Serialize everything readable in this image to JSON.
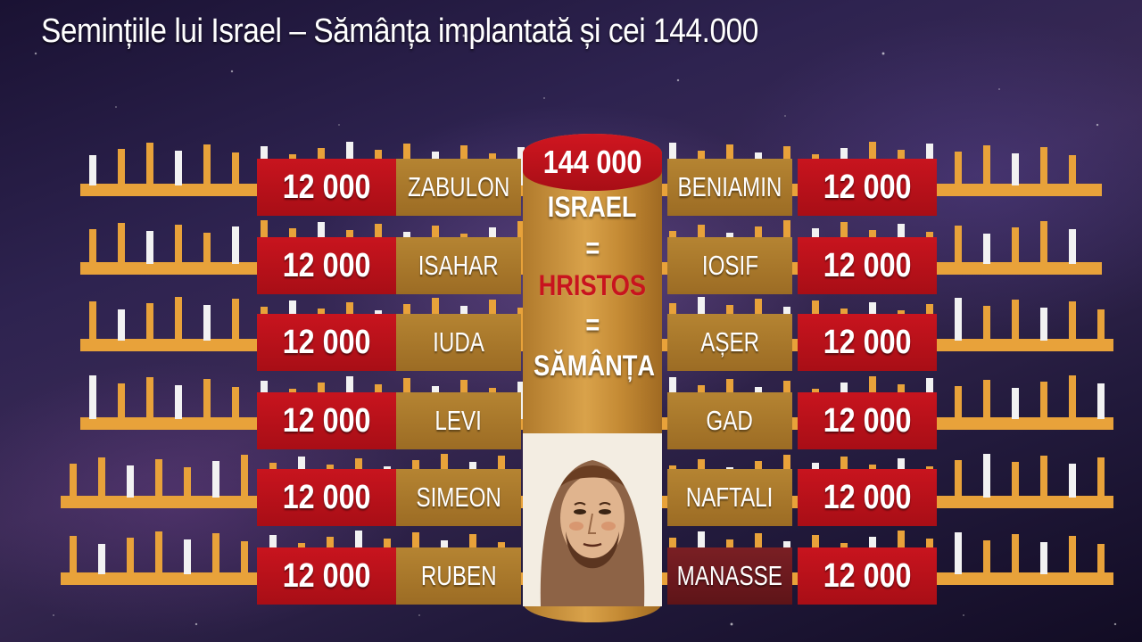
{
  "title": "Semințiile lui Israel – Sămânța implantată și cei 144.000",
  "center": {
    "total": "144 000",
    "line1": "ISRAEL",
    "eq1": "=",
    "line2": "HRISTOS",
    "eq2": "=",
    "line3": "SĂMÂNȚA",
    "portrait_icon": "christ-portrait-icon"
  },
  "left_tribes": [
    {
      "name": "ZABULON",
      "count": "12 000"
    },
    {
      "name": "ISAHAR",
      "count": "12 000"
    },
    {
      "name": "IUDA",
      "count": "12 000"
    },
    {
      "name": "LEVI",
      "count": "12 000"
    },
    {
      "name": "SIMEON",
      "count": "12 000"
    },
    {
      "name": "RUBEN",
      "count": "12 000"
    }
  ],
  "right_tribes": [
    {
      "name": "BENIAMIN",
      "count": "12 000"
    },
    {
      "name": "IOSIF",
      "count": "12 000"
    },
    {
      "name": "AȘER",
      "count": "12 000"
    },
    {
      "name": "GAD",
      "count": "12 000"
    },
    {
      "name": "NAFTALI",
      "count": "12 000"
    },
    {
      "name": "MANASSE",
      "count": "12 000"
    }
  ],
  "colors": {
    "count_red": "#c8141e",
    "name_gold": "#b58432",
    "manasse_dark": "#7a1f24",
    "fence_orange": "#e8a23a",
    "candle_white": "#f2f2f2"
  }
}
